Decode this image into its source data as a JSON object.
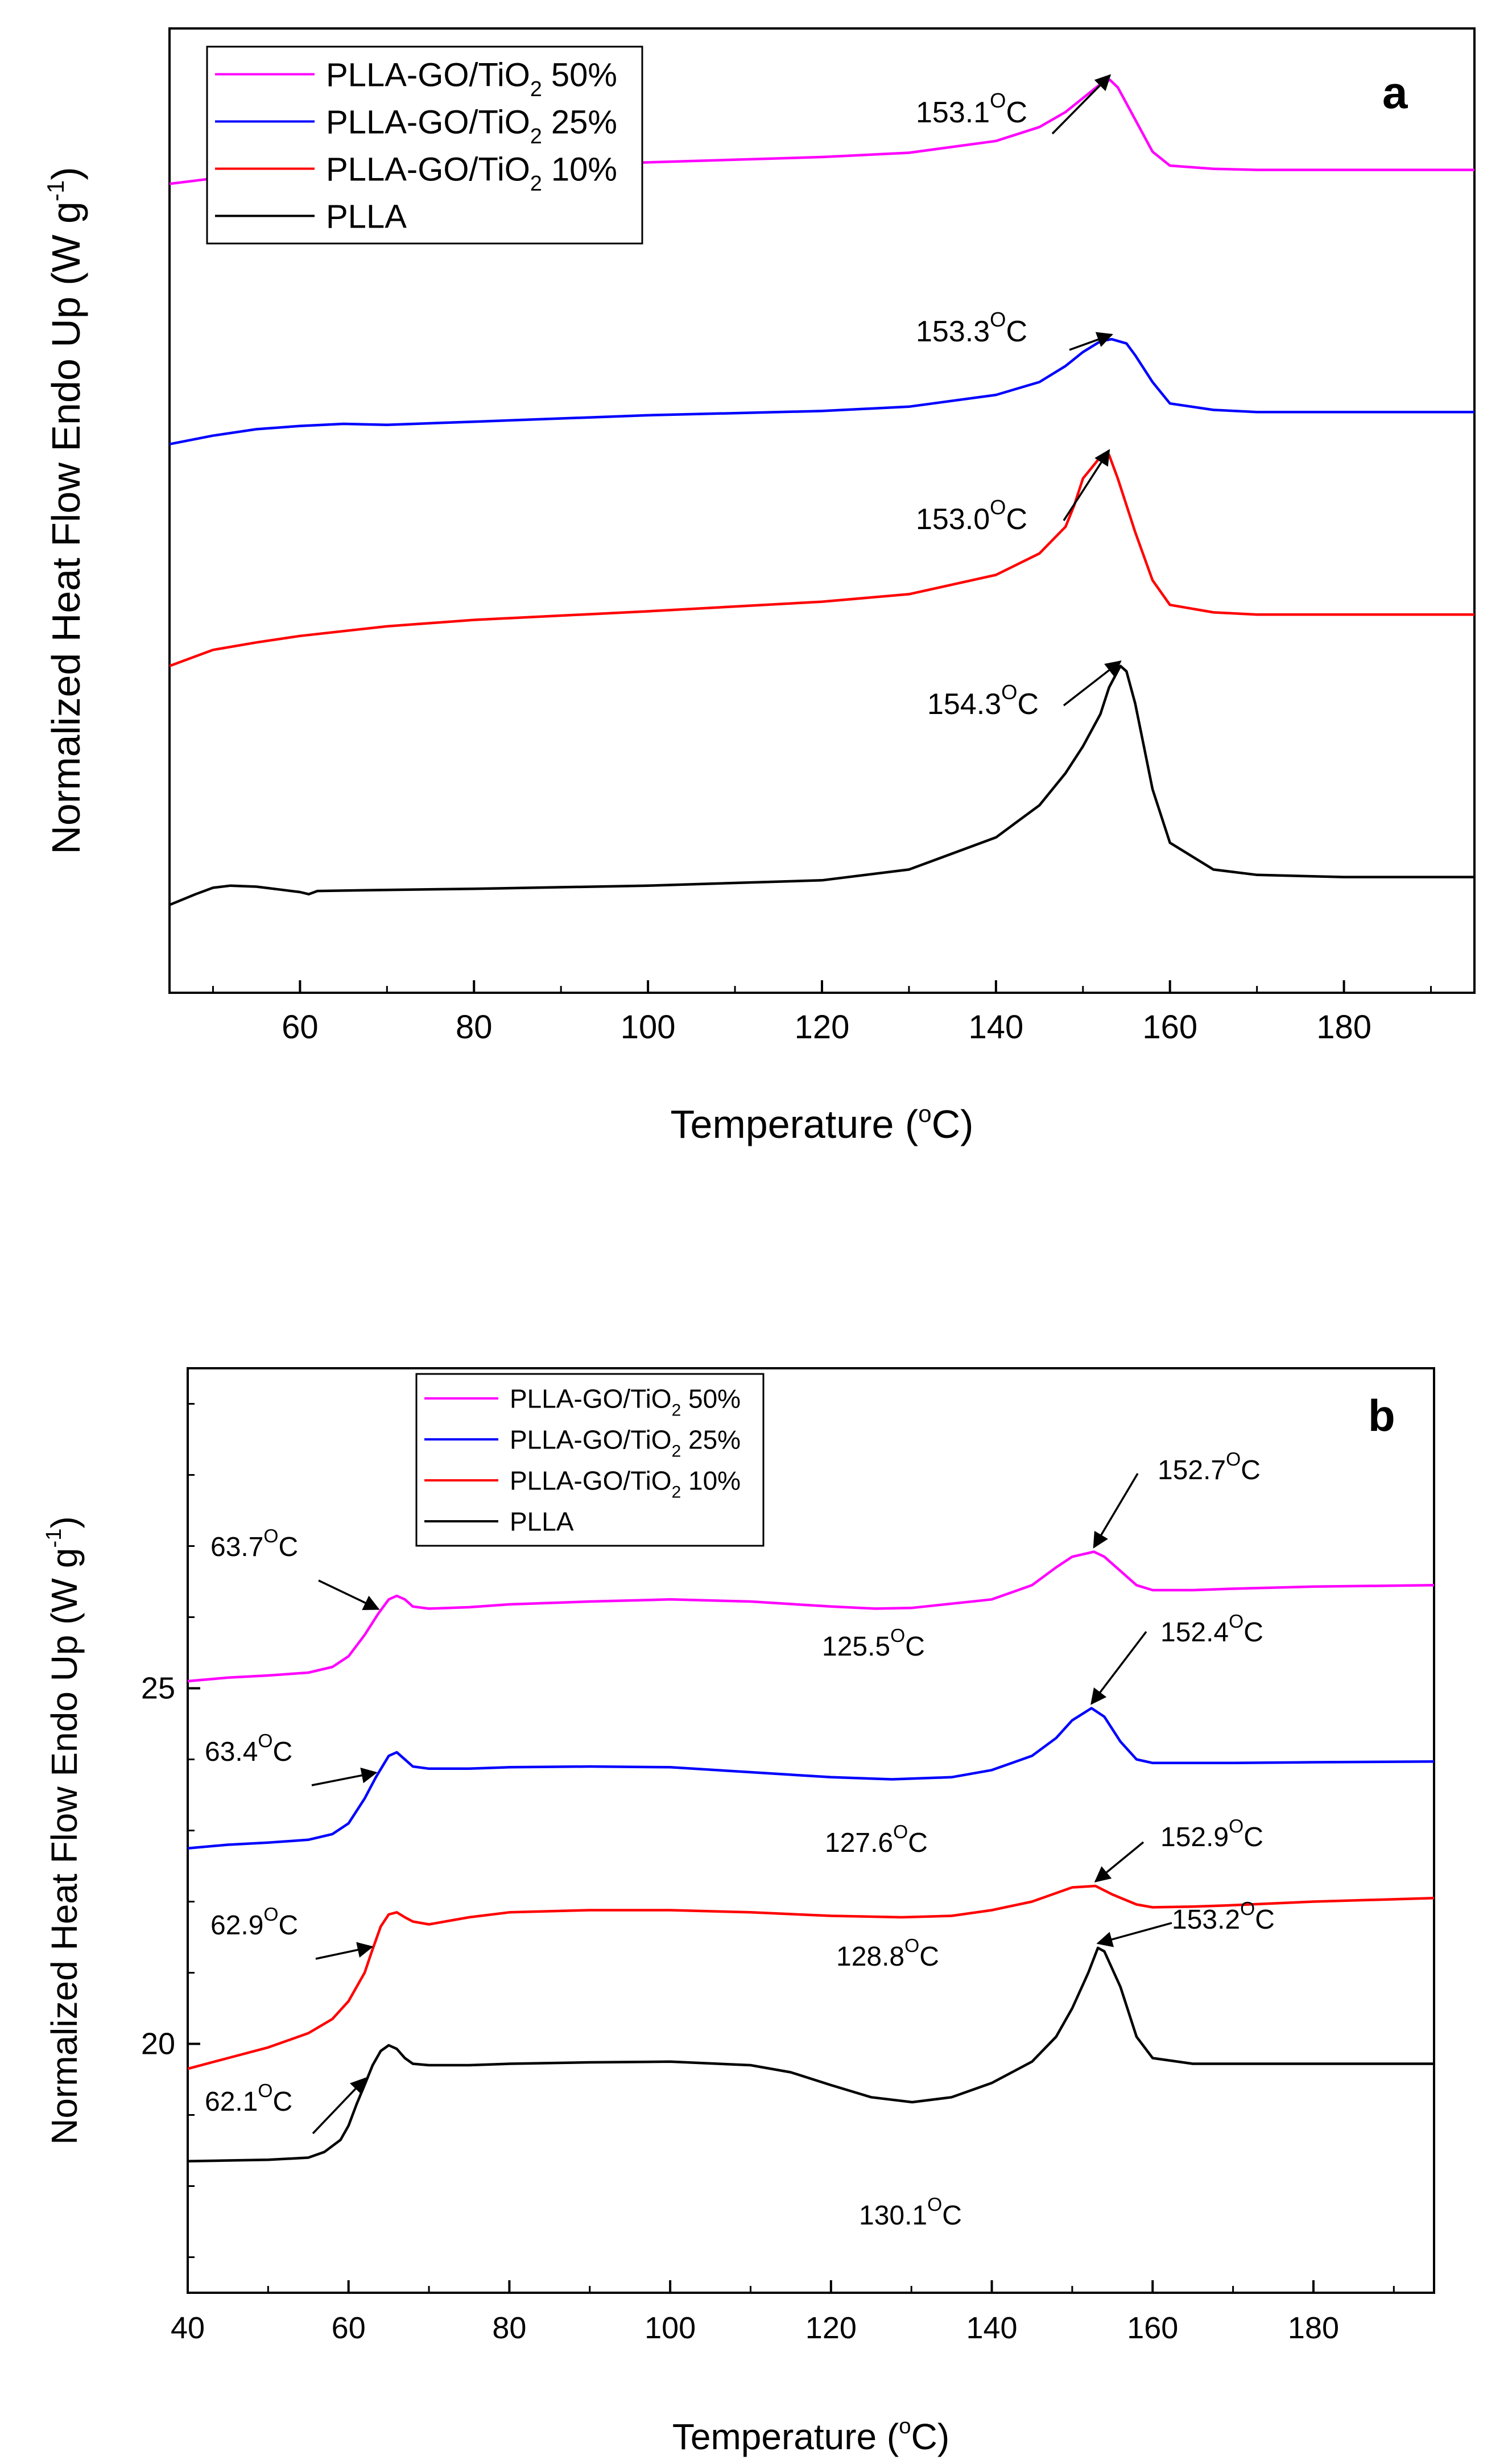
{
  "chart_data": [
    {
      "panel": "a",
      "type": "line",
      "title": "",
      "xlabel": "Temperature (°C)",
      "ylabel": "Normalized Heat Flow Endo Up (W g⁻¹)",
      "xlim": [
        45,
        195
      ],
      "xticks": [
        60,
        80,
        100,
        120,
        140,
        160,
        180
      ],
      "ylim": [
        0,
        9
      ],
      "yticks": [],
      "grid": false,
      "legend_position": "top-left",
      "series": [
        {
          "name": "PLLA-GO/TiO₂ 50%",
          "label": "PLLA-GO/TiO",
          "sub": "2",
          "suffix": " 50%",
          "color": "#ff00ff",
          "x": [
            45,
            50,
            55,
            60,
            70,
            80,
            100,
            120,
            130,
            140,
            145,
            148,
            150,
            152,
            153.1,
            154,
            156,
            158,
            160,
            165,
            170,
            180,
            195
          ],
          "y": [
            7.55,
            7.6,
            7.62,
            7.64,
            7.67,
            7.7,
            7.75,
            7.8,
            7.84,
            7.95,
            8.08,
            8.22,
            8.35,
            8.48,
            8.52,
            8.45,
            8.15,
            7.85,
            7.72,
            7.69,
            7.68,
            7.68,
            7.68
          ]
        },
        {
          "name": "PLLA-GO/TiO₂ 25%",
          "label": "PLLA-GO/TiO",
          "sub": "2",
          "suffix": " 25%",
          "color": "#0000ff",
          "x": [
            45,
            50,
            55,
            60,
            65,
            70,
            80,
            100,
            120,
            130,
            140,
            145,
            148,
            150,
            152,
            153.3,
            155,
            156,
            158,
            160,
            165,
            170,
            180,
            195
          ],
          "y": [
            5.12,
            5.2,
            5.26,
            5.29,
            5.31,
            5.3,
            5.33,
            5.39,
            5.43,
            5.47,
            5.58,
            5.7,
            5.85,
            5.98,
            6.08,
            6.1,
            6.06,
            5.95,
            5.7,
            5.5,
            5.44,
            5.42,
            5.42,
            5.42
          ]
        },
        {
          "name": "PLLA-GO/TiO₂ 10%",
          "label": "PLLA-GO/TiO",
          "sub": "2",
          "suffix": " 10%",
          "color": "#ff0000",
          "x": [
            45,
            50,
            55,
            60,
            70,
            80,
            100,
            120,
            130,
            140,
            145,
            148,
            149,
            150,
            152,
            153,
            154,
            156,
            158,
            160,
            165,
            170,
            180,
            195
          ],
          "y": [
            3.05,
            3.2,
            3.27,
            3.33,
            3.42,
            3.48,
            3.56,
            3.65,
            3.72,
            3.9,
            4.1,
            4.35,
            4.55,
            4.8,
            5.0,
            5.02,
            4.8,
            4.3,
            3.85,
            3.62,
            3.55,
            3.53,
            3.53,
            3.53
          ]
        },
        {
          "name": "PLLA",
          "label": "PLLA",
          "sub": "",
          "suffix": "",
          "color": "#000000",
          "x": [
            45,
            48,
            50,
            52,
            55,
            58,
            60,
            61,
            62,
            70,
            80,
            100,
            120,
            130,
            140,
            145,
            148,
            150,
            152,
            153,
            154.3,
            155,
            156,
            157,
            158,
            160,
            165,
            170,
            180,
            195
          ],
          "y": [
            0.82,
            0.92,
            0.98,
            1.0,
            0.99,
            0.96,
            0.94,
            0.92,
            0.95,
            0.96,
            0.97,
            1.0,
            1.05,
            1.15,
            1.45,
            1.75,
            2.05,
            2.3,
            2.6,
            2.85,
            3.05,
            3.0,
            2.7,
            2.3,
            1.9,
            1.4,
            1.15,
            1.1,
            1.08,
            1.08
          ]
        }
      ],
      "annotations": [
        {
          "text": "153.1",
          "unit": "C",
          "x": 153.1,
          "y": 8.52,
          "series": 0
        },
        {
          "text": "153.3",
          "unit": "C",
          "x": 153.3,
          "y": 6.1,
          "series": 1
        },
        {
          "text": "153.0",
          "unit": "C",
          "x": 153.0,
          "y": 5.02,
          "series": 2
        },
        {
          "text": "154.3",
          "unit": "C",
          "x": 154.3,
          "y": 3.05,
          "series": 3
        }
      ],
      "panel_label": "a"
    },
    {
      "panel": "b",
      "type": "line",
      "title": "",
      "xlabel": "Temperature (°C)",
      "ylabel": "Normalized Heat Flow Endo Up (W g⁻¹)",
      "xlim": [
        40,
        195
      ],
      "xticks": [
        40,
        60,
        80,
        100,
        120,
        140,
        160,
        180
      ],
      "ylim": [
        16.5,
        29.5
      ],
      "yticks": [
        20,
        25
      ],
      "grid": false,
      "legend_position": "top-left",
      "series": [
        {
          "name": "PLLA-GO/TiO₂ 50%",
          "label": "PLLA-GO/TiO",
          "sub": "2",
          "suffix": " 50%",
          "color": "#ff00ff",
          "x": [
            40,
            45,
            50,
            55,
            58,
            60,
            62,
            63.7,
            65,
            66,
            67,
            68,
            70,
            75,
            80,
            90,
            100,
            110,
            120,
            125.5,
            130,
            140,
            145,
            148,
            150,
            152.7,
            154,
            156,
            158,
            160,
            165,
            170,
            180,
            195
          ],
          "y": [
            25.1,
            25.15,
            25.18,
            25.22,
            25.3,
            25.45,
            25.75,
            26.05,
            26.25,
            26.3,
            26.25,
            26.15,
            26.12,
            26.14,
            26.18,
            26.22,
            26.25,
            26.22,
            26.15,
            26.12,
            26.13,
            26.25,
            26.45,
            26.7,
            26.85,
            26.92,
            26.85,
            26.65,
            26.45,
            26.38,
            26.38,
            26.4,
            26.43,
            26.45
          ]
        },
        {
          "name": "PLLA-GO/TiO₂ 25%",
          "label": "PLLA-GO/TiO",
          "sub": "2",
          "suffix": " 25%",
          "color": "#0000ff",
          "x": [
            40,
            45,
            50,
            55,
            58,
            60,
            62,
            63.4,
            65,
            66,
            67,
            68,
            70,
            75,
            80,
            90,
            100,
            110,
            120,
            127.6,
            135,
            140,
            145,
            148,
            150,
            152.4,
            154,
            156,
            158,
            160,
            165,
            170,
            180,
            195
          ],
          "y": [
            22.75,
            22.8,
            22.83,
            22.87,
            22.95,
            23.1,
            23.45,
            23.75,
            24.05,
            24.1,
            24.0,
            23.9,
            23.87,
            23.87,
            23.89,
            23.9,
            23.89,
            23.82,
            23.75,
            23.72,
            23.75,
            23.85,
            24.05,
            24.3,
            24.55,
            24.72,
            24.6,
            24.25,
            24.0,
            23.95,
            23.95,
            23.95,
            23.96,
            23.97
          ]
        },
        {
          "name": "PLLA-GO/TiO₂ 10%",
          "label": "PLLA-GO/TiO",
          "sub": "2",
          "suffix": " 10%",
          "color": "#ff0000",
          "x": [
            40,
            45,
            50,
            55,
            58,
            60,
            62,
            62.9,
            64,
            65,
            66,
            67,
            68,
            70,
            72,
            75,
            80,
            90,
            100,
            110,
            120,
            128.8,
            135,
            140,
            145,
            148,
            150,
            152.9,
            155,
            158,
            160,
            165,
            170,
            180,
            195
          ],
          "y": [
            19.65,
            19.8,
            19.95,
            20.15,
            20.35,
            20.6,
            21.0,
            21.3,
            21.65,
            21.82,
            21.85,
            21.78,
            21.72,
            21.68,
            21.72,
            21.78,
            21.85,
            21.88,
            21.88,
            21.85,
            21.8,
            21.78,
            21.8,
            21.88,
            22.0,
            22.12,
            22.2,
            22.22,
            22.1,
            21.96,
            21.92,
            21.93,
            21.95,
            22.0,
            22.05
          ]
        },
        {
          "name": "PLLA",
          "label": "PLLA",
          "sub": "",
          "suffix": "",
          "color": "#000000",
          "x": [
            40,
            45,
            50,
            55,
            57,
            59,
            60,
            61,
            62.1,
            63,
            64,
            65,
            66,
            67,
            68,
            70,
            75,
            80,
            90,
            100,
            110,
            115,
            120,
            125,
            130.1,
            135,
            140,
            145,
            148,
            150,
            152,
            153.2,
            154,
            156,
            158,
            160,
            165,
            170,
            180,
            195
          ],
          "y": [
            18.35,
            18.36,
            18.37,
            18.4,
            18.48,
            18.65,
            18.85,
            19.15,
            19.45,
            19.7,
            19.9,
            19.98,
            19.93,
            19.8,
            19.72,
            19.7,
            19.7,
            19.72,
            19.74,
            19.75,
            19.7,
            19.6,
            19.42,
            19.25,
            19.18,
            19.25,
            19.45,
            19.75,
            20.1,
            20.5,
            21.0,
            21.35,
            21.3,
            20.8,
            20.1,
            19.8,
            19.72,
            19.72,
            19.72,
            19.72
          ]
        }
      ],
      "annotations": [
        {
          "text": "63.7",
          "unit": "C",
          "x": 63.7,
          "y": 26.05,
          "series": 0
        },
        {
          "text": "125.5",
          "unit": "C",
          "x": 125.5,
          "y": 26.12,
          "series": 0,
          "noarrow": true
        },
        {
          "text": "152.7",
          "unit": "C",
          "x": 152.7,
          "y": 26.92,
          "series": 0
        },
        {
          "text": "63.4",
          "unit": "C",
          "x": 63.4,
          "y": 23.75,
          "series": 1
        },
        {
          "text": "127.6",
          "unit": "C",
          "x": 127.6,
          "y": 23.72,
          "series": 1,
          "noarrow": true
        },
        {
          "text": "152.4",
          "unit": "C",
          "x": 152.4,
          "y": 24.72,
          "series": 1
        },
        {
          "text": "62.9",
          "unit": "C",
          "x": 62.9,
          "y": 21.3,
          "series": 2
        },
        {
          "text": "128.8",
          "unit": "C",
          "x": 128.8,
          "y": 21.78,
          "series": 2,
          "noarrow": true
        },
        {
          "text": "152.9",
          "unit": "C",
          "x": 152.9,
          "y": 22.22,
          "series": 2
        },
        {
          "text": "62.1",
          "unit": "C",
          "x": 62.1,
          "y": 19.45,
          "series": 3
        },
        {
          "text": "130.1",
          "unit": "C",
          "x": 130.1,
          "y": 19.18,
          "series": 3,
          "noarrow": true
        },
        {
          "text": "153.2",
          "unit": "C",
          "x": 153.2,
          "y": 21.35,
          "series": 3
        }
      ],
      "panel_label": "b"
    }
  ]
}
